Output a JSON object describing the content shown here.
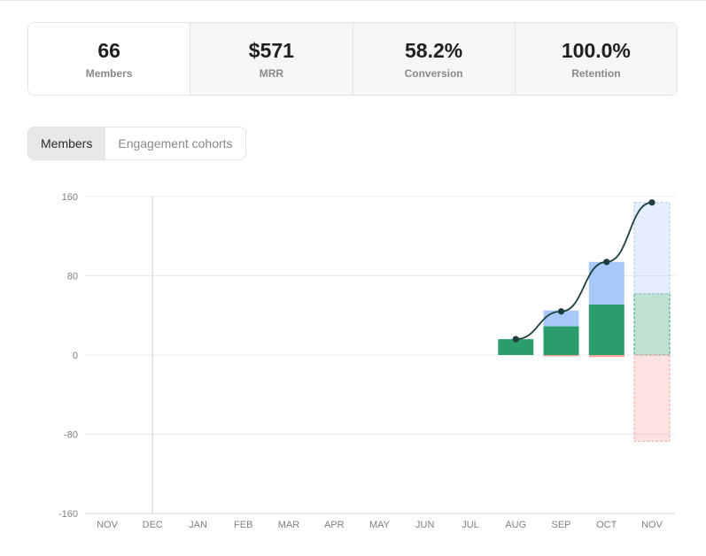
{
  "stats": [
    {
      "value": "66",
      "label": "Members"
    },
    {
      "value": "$571",
      "label": "MRR"
    },
    {
      "value": "58.2%",
      "label": "Conversion"
    },
    {
      "value": "100.0%",
      "label": "Retention"
    }
  ],
  "tabs": [
    {
      "label": "Members",
      "active": true
    },
    {
      "label": "Engagement cohorts",
      "active": false
    }
  ],
  "chart_data": {
    "type": "bar",
    "stacked": true,
    "categories": [
      "NOV",
      "DEC",
      "JAN",
      "FEB",
      "MAR",
      "APR",
      "MAY",
      "JUN",
      "JUL",
      "AUG",
      "SEP",
      "OCT",
      "NOV"
    ],
    "ylim": [
      -160,
      160
    ],
    "yticks": [
      160,
      80,
      0,
      -80,
      -160
    ],
    "grid": true,
    "title": "",
    "xlabel": "",
    "ylabel": "",
    "series": [
      {
        "type": "bar",
        "color": "#2a9d6b",
        "values": [
          0,
          0,
          0,
          0,
          0,
          0,
          0,
          0,
          0,
          16,
          29,
          51,
          62
        ]
      },
      {
        "type": "bar",
        "color": "#a8c8fa",
        "values": [
          0,
          0,
          0,
          0,
          0,
          0,
          0,
          0,
          0,
          0,
          16,
          43,
          92
        ]
      },
      {
        "type": "bar",
        "color": "#f4a39a",
        "values": [
          0,
          0,
          0,
          0,
          0,
          0,
          0,
          0,
          0,
          0,
          -1,
          -2,
          -87
        ]
      },
      {
        "type": "line",
        "color": "#1d3d3f",
        "values": [
          null,
          null,
          null,
          null,
          null,
          null,
          null,
          null,
          null,
          16,
          44,
          94,
          154
        ]
      }
    ],
    "projected_index": 12
  }
}
